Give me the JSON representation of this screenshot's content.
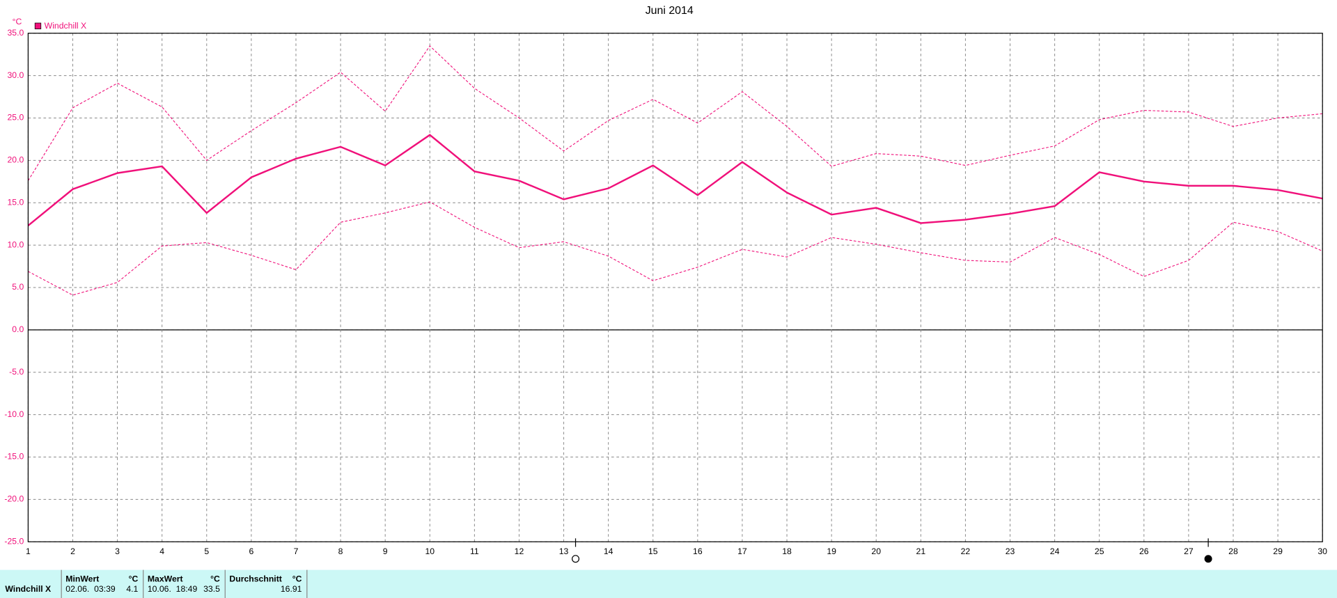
{
  "chart_data": {
    "type": "line",
    "title": "Juni 2014",
    "y_unit": "°C",
    "x": [
      1,
      2,
      3,
      4,
      5,
      6,
      7,
      8,
      9,
      10,
      11,
      12,
      13,
      14,
      15,
      16,
      17,
      18,
      19,
      20,
      21,
      22,
      23,
      24,
      25,
      26,
      27,
      28,
      29,
      30
    ],
    "xlim": [
      1,
      30
    ],
    "xticks": [
      1,
      2,
      3,
      4,
      5,
      6,
      7,
      8,
      9,
      10,
      11,
      12,
      13,
      14,
      15,
      16,
      17,
      18,
      19,
      20,
      21,
      22,
      23,
      24,
      25,
      26,
      27,
      28,
      29,
      30
    ],
    "ylim": [
      -25,
      35
    ],
    "yticks": [
      {
        "value": 35,
        "label": "35.0"
      },
      {
        "value": 30,
        "label": "30.0"
      },
      {
        "value": 25,
        "label": "25.0"
      },
      {
        "value": 20,
        "label": "20.0"
      },
      {
        "value": 15,
        "label": "15.0"
      },
      {
        "value": 10,
        "label": "10.0"
      },
      {
        "value": 5,
        "label": "5.0"
      },
      {
        "value": 0,
        "label": "0.0"
      },
      {
        "value": -5,
        "label": "-5.0"
      },
      {
        "value": -10,
        "label": "-10.0"
      },
      {
        "value": -15,
        "label": "-15.0"
      },
      {
        "value": -20,
        "label": "-20.0"
      },
      {
        "value": -25,
        "label": "-25.0"
      }
    ],
    "grid": true,
    "series": [
      {
        "name": "Windchill X",
        "color": "#f0107a",
        "style": "solid",
        "values": [
          12.3,
          16.6,
          18.5,
          19.3,
          13.8,
          18.0,
          20.2,
          21.6,
          19.4,
          23.0,
          18.7,
          17.6,
          15.4,
          16.7,
          19.4,
          15.9,
          19.8,
          16.2,
          13.6,
          14.4,
          12.6,
          13.0,
          13.7,
          14.6,
          18.6,
          17.5,
          17.0,
          17.0,
          16.5,
          15.5
        ]
      },
      {
        "color": "#f0107a",
        "style": "dashed",
        "values": [
          17.6,
          26.2,
          29.1,
          26.3,
          20.0,
          23.5,
          26.8,
          30.4,
          25.8,
          33.5,
          28.5,
          25.0,
          21.1,
          24.7,
          27.2,
          24.4,
          28.1,
          24.0,
          19.3,
          20.8,
          20.5,
          19.4,
          20.6,
          21.7,
          24.8,
          25.9,
          25.7,
          24.0,
          25.0,
          25.5
        ]
      },
      {
        "color": "#f0107a",
        "style": "dashed",
        "values": [
          6.9,
          4.1,
          5.6,
          9.9,
          10.3,
          8.8,
          7.1,
          12.7,
          13.8,
          15.1,
          12.1,
          9.7,
          10.4,
          8.7,
          5.8,
          7.4,
          9.5,
          8.6,
          10.9,
          10.1,
          9.1,
          8.2,
          8.0,
          10.9,
          8.9,
          6.3,
          8.2,
          12.7,
          11.6,
          9.3
        ]
      }
    ]
  },
  "table": {
    "row_label": "Windchill X",
    "min": {
      "header": "MinWert",
      "unit": "°C",
      "time": "02.06.  03:39",
      "value": "4.1"
    },
    "max": {
      "header": "MaxWert",
      "unit": "°C",
      "time": "10.06.  18:49",
      "value": "33.5"
    },
    "avg": {
      "header": "Durchschnitt",
      "unit": "°C",
      "value": "16.91"
    }
  }
}
